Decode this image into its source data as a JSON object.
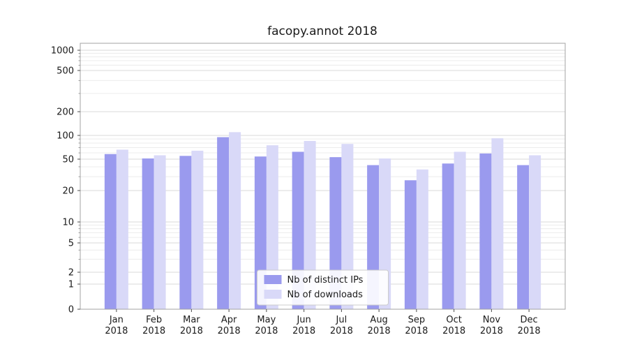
{
  "figure": {
    "title": "facopy.annot 2018"
  },
  "chart_data": {
    "type": "bar",
    "title": "facopy.annot 2018",
    "yscale": "log (0 baseline, symlog-like)",
    "grid": true,
    "categories": [
      "Jan 2018",
      "Feb 2018",
      "Mar 2018",
      "Apr 2018",
      "May 2018",
      "Jun 2018",
      "Jul 2018",
      "Aug 2018",
      "Sep 2018",
      "Oct 2018",
      "Nov 2018",
      "Dec 2018"
    ],
    "series": [
      {
        "name": "Nb of distinct IPs",
        "color": "#9a9aee",
        "values": [
          58,
          51,
          55,
          95,
          54,
          62,
          53,
          42,
          27,
          44,
          59,
          42
        ]
      },
      {
        "name": "Nb of downloads",
        "color": "#d9d9f8",
        "values": [
          66,
          56,
          64,
          110,
          75,
          85,
          78,
          51,
          37,
          62,
          92,
          56
        ]
      }
    ],
    "y_ticks": [
      0,
      1,
      2,
      5,
      10,
      20,
      50,
      100,
      200,
      500,
      1000
    ],
    "ylim": [
      0,
      1300
    ],
    "legend": {
      "position": "lower center",
      "entries": [
        "Nb of distinct IPs",
        "Nb of downloads"
      ]
    }
  }
}
